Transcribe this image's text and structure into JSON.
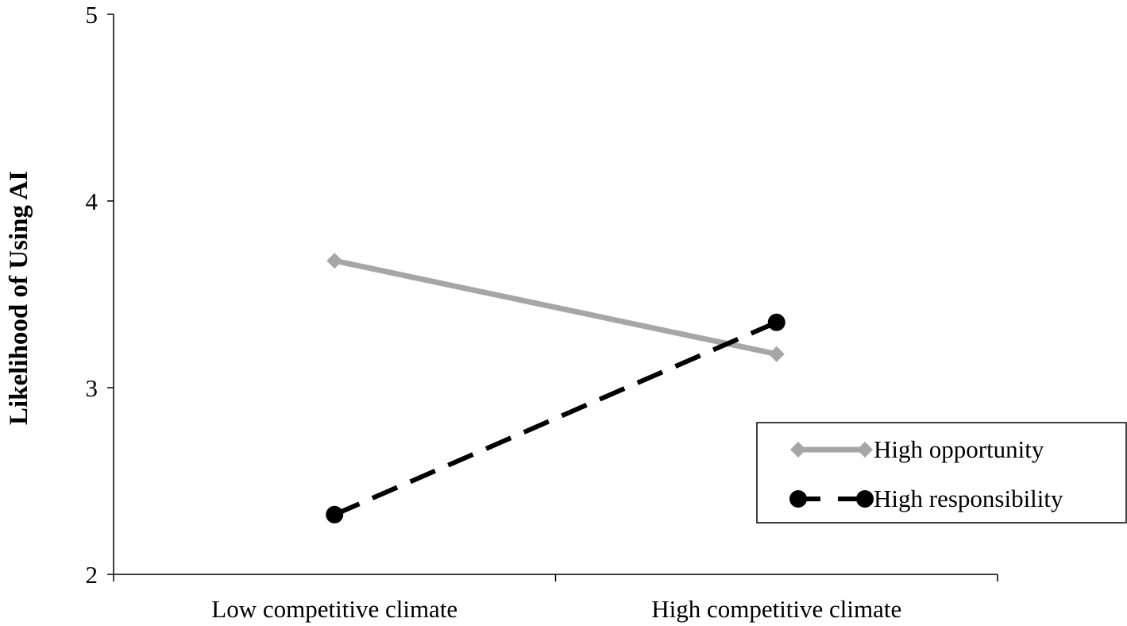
{
  "chart_data": {
    "type": "line",
    "categories": [
      "Low competitive climate",
      "High competitive climate"
    ],
    "series": [
      {
        "name": "High opportunity",
        "values": [
          3.68,
          3.18
        ],
        "color": "#a6a6a6",
        "line_style": "solid",
        "marker": "diamond"
      },
      {
        "name": "High responsibility",
        "values": [
          2.32,
          3.35
        ],
        "color": "#000000",
        "line_style": "dashed",
        "marker": "circle"
      }
    ],
    "title": "",
    "xlabel": "",
    "ylabel": "Likelihood of Using AI",
    "ylim": [
      2,
      5
    ],
    "yticks": [
      "2",
      "3",
      "4",
      "5"
    ],
    "grid": false,
    "legend_position": "lower-right"
  }
}
